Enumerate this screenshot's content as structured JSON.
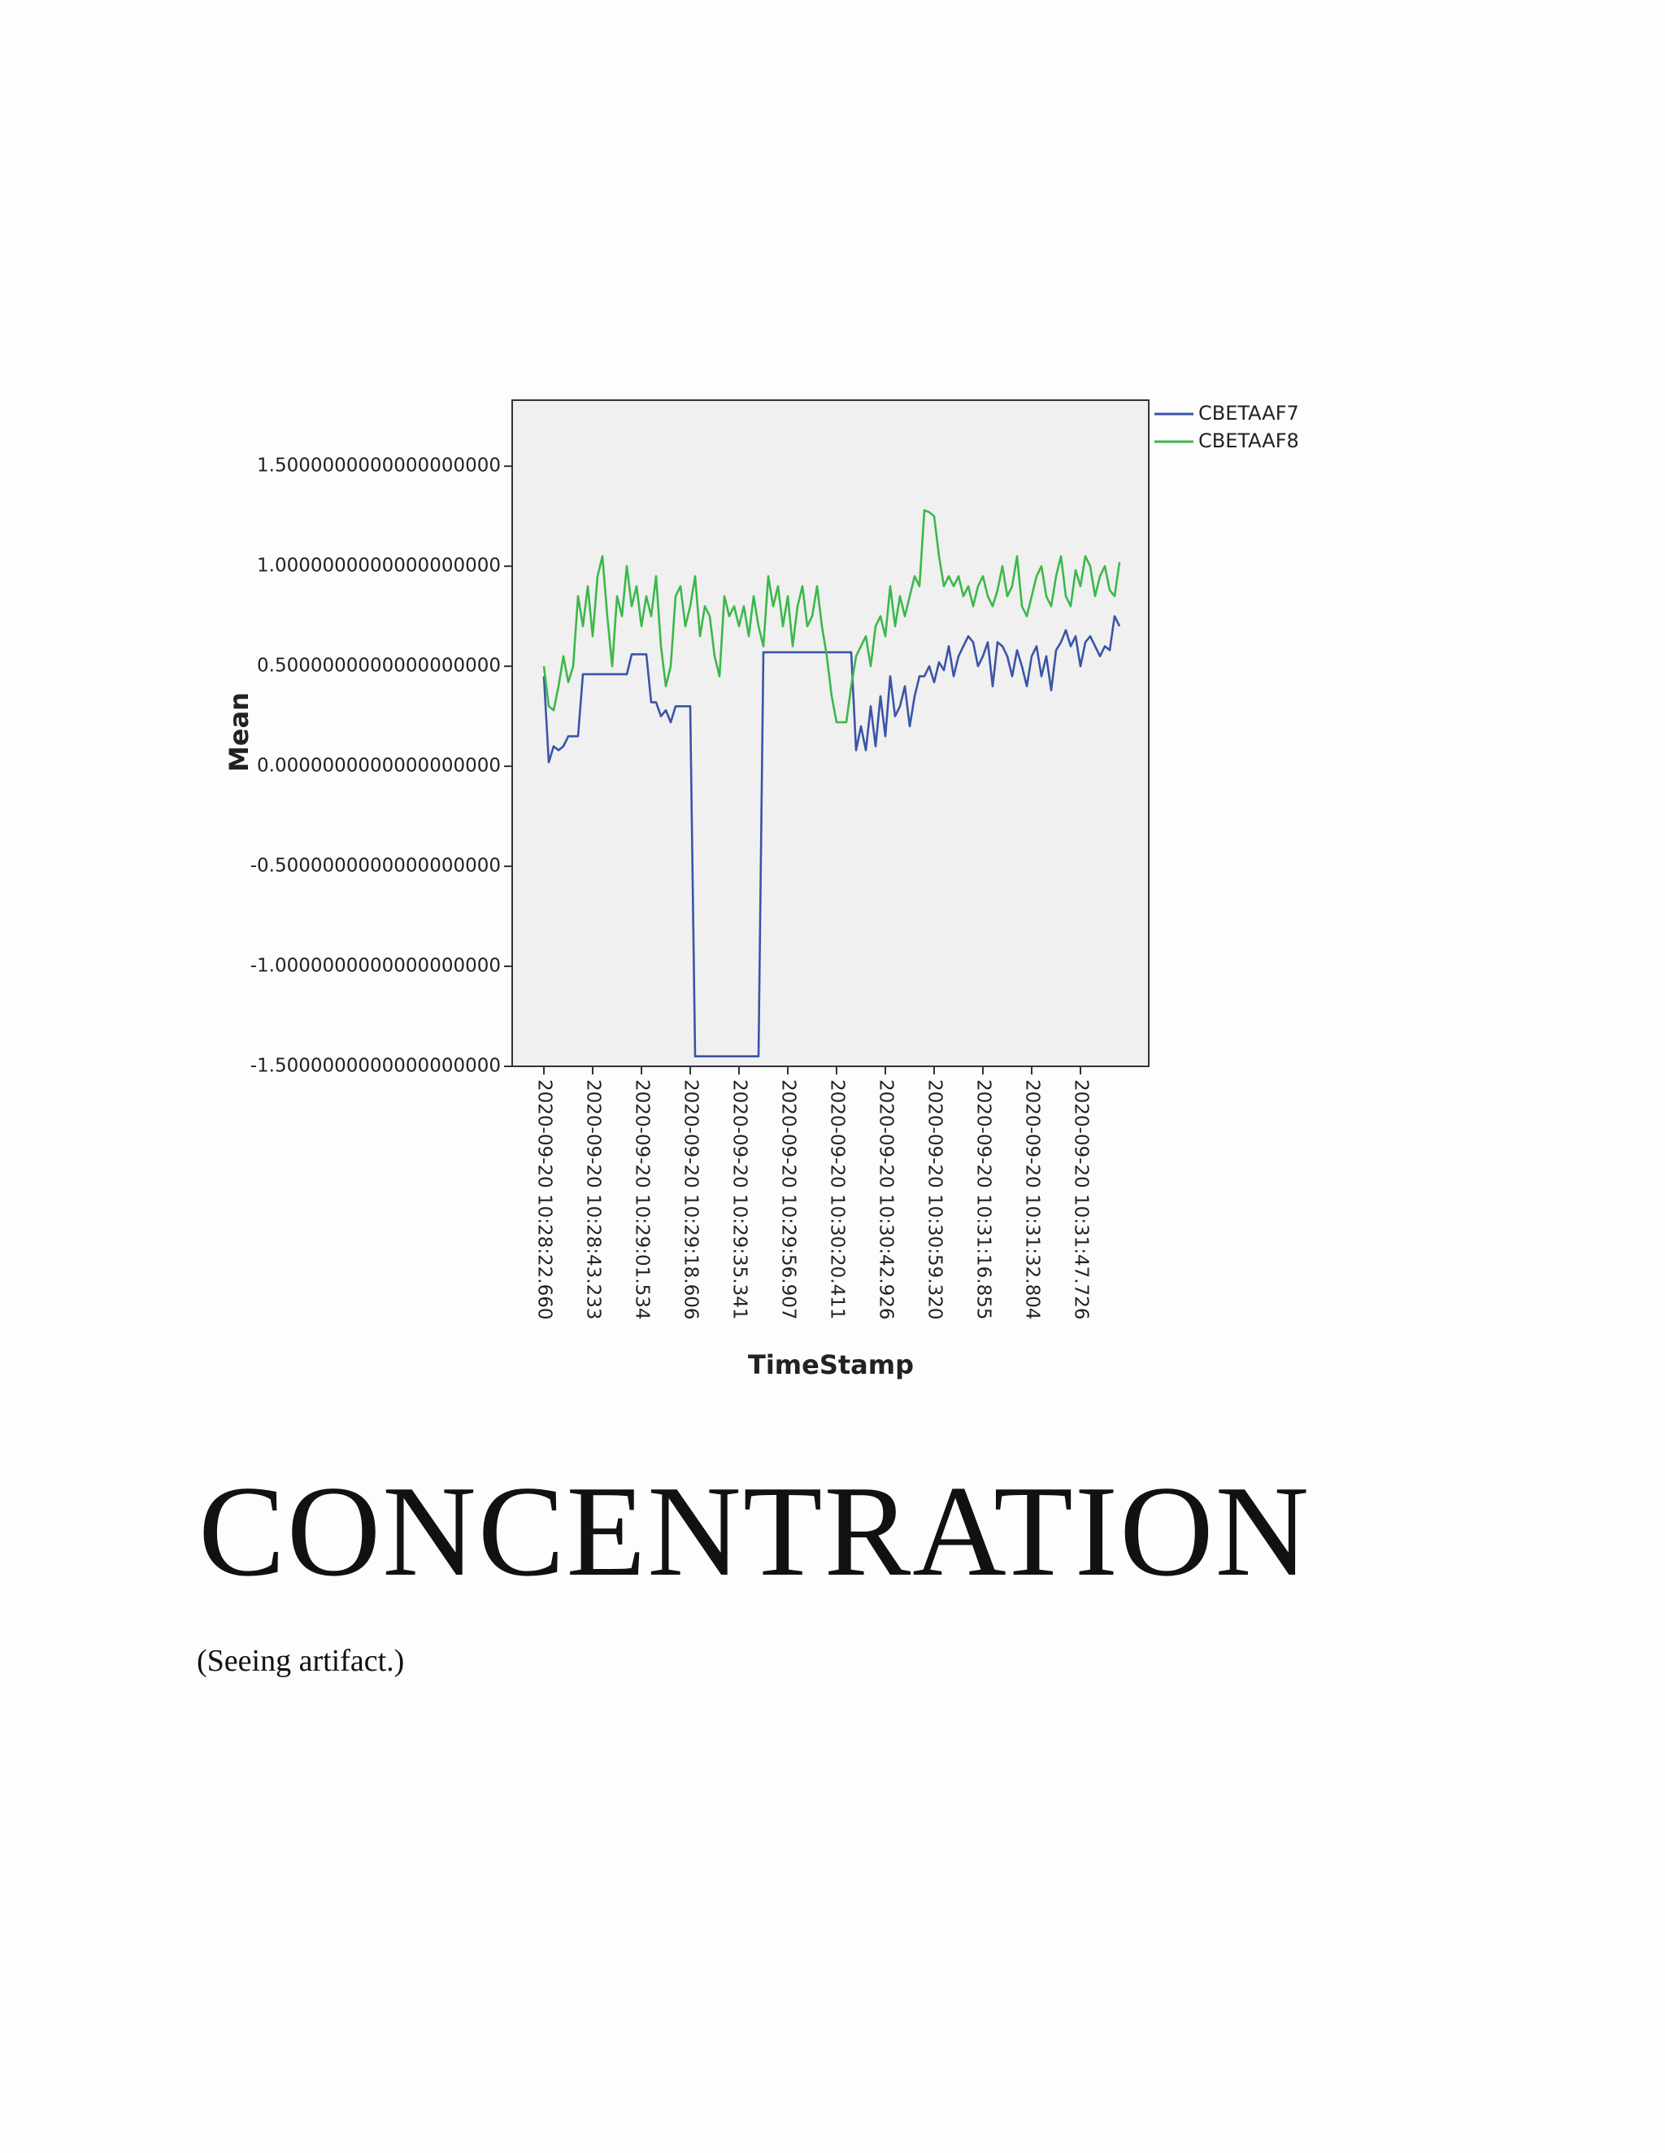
{
  "chart_data": {
    "type": "line",
    "ylabel": "Mean",
    "xlabel": "TimeStamp",
    "categories": [
      "2020-09-20 10:28:22.660",
      null,
      null,
      null,
      null,
      null,
      null,
      null,
      null,
      null,
      "2020-09-20 10:28:43.233",
      null,
      null,
      null,
      null,
      null,
      null,
      null,
      null,
      null,
      "2020-09-20 10:29:01.534",
      null,
      null,
      null,
      null,
      null,
      null,
      null,
      null,
      null,
      "2020-09-20 10:29:18.606",
      null,
      null,
      null,
      null,
      null,
      null,
      null,
      null,
      null,
      "2020-09-20 10:29:35.341",
      null,
      null,
      null,
      null,
      null,
      null,
      null,
      null,
      null,
      "2020-09-20 10:29:56.907",
      null,
      null,
      null,
      null,
      null,
      null,
      null,
      null,
      null,
      "2020-09-20 10:30:20.411",
      null,
      null,
      null,
      null,
      null,
      null,
      null,
      null,
      null,
      "2020-09-20 10:30:42.926",
      null,
      null,
      null,
      null,
      null,
      null,
      null,
      null,
      null,
      "2020-09-20 10:30:59.320",
      null,
      null,
      null,
      null,
      null,
      null,
      null,
      null,
      null,
      "2020-09-20 10:31:16.855",
      null,
      null,
      null,
      null,
      null,
      null,
      null,
      null,
      null,
      "2020-09-20 10:31:32.804",
      null,
      null,
      null,
      null,
      null,
      null,
      null,
      null,
      null,
      "2020-09-20 10:31:47.726",
      null,
      null,
      null,
      null,
      null,
      null,
      null,
      null
    ],
    "series": [
      {
        "name": "CBETAAF7",
        "color": "#3a54a8",
        "values": [
          0.45,
          0.02,
          0.1,
          0.08,
          0.1,
          0.15,
          0.15,
          0.15,
          0.46,
          0.46,
          0.46,
          0.46,
          0.46,
          0.46,
          0.46,
          0.46,
          0.46,
          0.46,
          0.56,
          0.56,
          0.56,
          0.56,
          0.32,
          0.32,
          0.25,
          0.28,
          0.22,
          0.3,
          0.3,
          0.3,
          0.3,
          -1.45,
          -1.45,
          -1.45,
          -1.45,
          -1.45,
          -1.45,
          -1.45,
          -1.45,
          -1.45,
          -1.45,
          -1.45,
          -1.45,
          -1.45,
          -1.45,
          0.57,
          0.57,
          0.57,
          0.57,
          0.57,
          0.57,
          0.57,
          0.57,
          0.57,
          0.57,
          0.57,
          0.57,
          0.57,
          0.57,
          0.57,
          0.57,
          0.57,
          0.57,
          0.57,
          0.08,
          0.2,
          0.08,
          0.3,
          0.1,
          0.35,
          0.15,
          0.45,
          0.25,
          0.3,
          0.4,
          0.2,
          0.35,
          0.45,
          0.45,
          0.5,
          0.42,
          0.52,
          0.48,
          0.6,
          0.45,
          0.55,
          0.6,
          0.65,
          0.62,
          0.5,
          0.55,
          0.62,
          0.4,
          0.62,
          0.6,
          0.55,
          0.45,
          0.58,
          0.5,
          0.4,
          0.55,
          0.6,
          0.45,
          0.55,
          0.38,
          0.58,
          0.62,
          0.68,
          0.6,
          0.65,
          0.5,
          0.62,
          0.65,
          0.6,
          0.55,
          0.6,
          0.58,
          0.75,
          0.7
        ]
      },
      {
        "name": "CBETAAF8",
        "color": "#3cb84a",
        "values": [
          0.5,
          0.3,
          0.28,
          0.4,
          0.55,
          0.42,
          0.5,
          0.85,
          0.7,
          0.9,
          0.65,
          0.95,
          1.05,
          0.75,
          0.5,
          0.85,
          0.75,
          1.0,
          0.8,
          0.9,
          0.7,
          0.85,
          0.75,
          0.95,
          0.6,
          0.4,
          0.5,
          0.85,
          0.9,
          0.7,
          0.8,
          0.95,
          0.65,
          0.8,
          0.75,
          0.55,
          0.45,
          0.85,
          0.75,
          0.8,
          0.7,
          0.8,
          0.65,
          0.85,
          0.7,
          0.6,
          0.95,
          0.8,
          0.9,
          0.7,
          0.85,
          0.6,
          0.8,
          0.9,
          0.7,
          0.75,
          0.9,
          0.7,
          0.55,
          0.35,
          0.22,
          0.22,
          0.22,
          0.4,
          0.55,
          0.6,
          0.65,
          0.5,
          0.7,
          0.75,
          0.65,
          0.9,
          0.7,
          0.85,
          0.75,
          0.85,
          0.95,
          0.9,
          1.28,
          1.27,
          1.25,
          1.05,
          0.9,
          0.95,
          0.9,
          0.95,
          0.85,
          0.9,
          0.8,
          0.9,
          0.95,
          0.85,
          0.8,
          0.88,
          1.0,
          0.85,
          0.9,
          1.05,
          0.8,
          0.75,
          0.85,
          0.95,
          1.0,
          0.85,
          0.8,
          0.95,
          1.05,
          0.85,
          0.8,
          0.98,
          0.9,
          1.05,
          1.0,
          0.85,
          0.95,
          1.0,
          0.88,
          0.85,
          1.02
        ]
      }
    ],
    "ylim": [
      -1.5,
      1.83
    ],
    "yticks": [
      {
        "value": -1.5,
        "label": "-1.5000000000000000000"
      },
      {
        "value": -1.0,
        "label": "-1.0000000000000000000"
      },
      {
        "value": -0.5,
        "label": "-0.5000000000000000000"
      },
      {
        "value": 0,
        "label": "0.0000000000000000000"
      },
      {
        "value": 0.5,
        "label": "0.5000000000000000000"
      },
      {
        "value": 1.0,
        "label": "1.0000000000000000000"
      },
      {
        "value": 1.5,
        "label": "1.5000000000000000000"
      }
    ],
    "legend": "outside-top-right",
    "grid": false
  },
  "heading": "CONCENTRATION",
  "note": "(Seeing artifact.)"
}
